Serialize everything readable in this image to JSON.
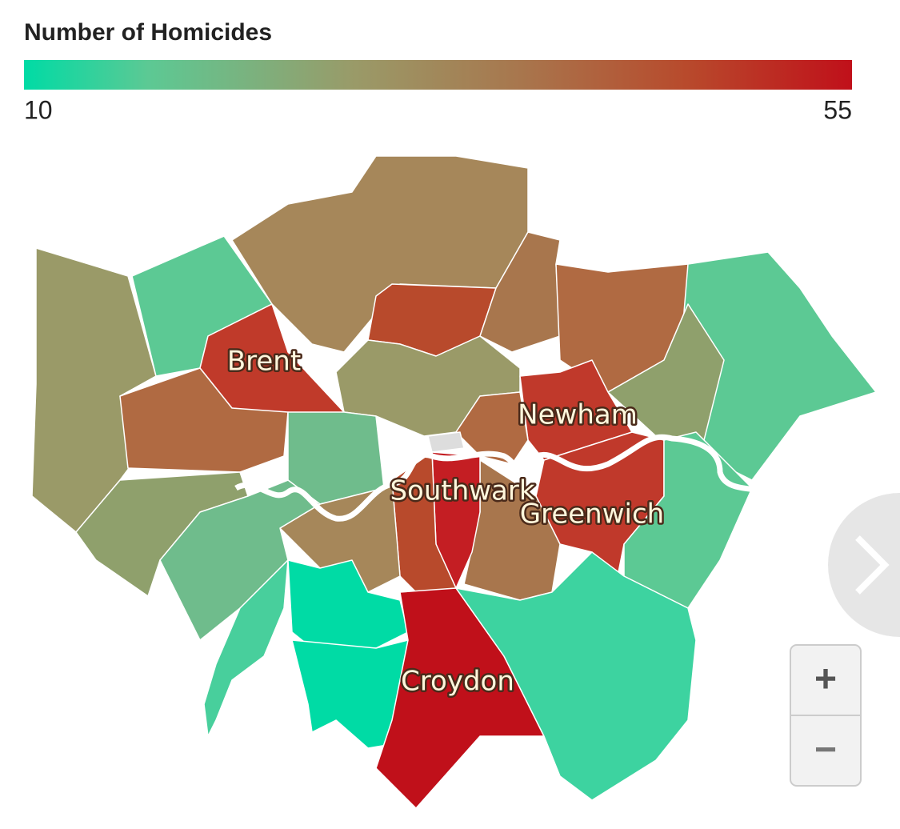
{
  "legend": {
    "title": "Number of Homicides",
    "min": 10,
    "max": 55
  },
  "labels": [
    "Brent",
    "Newham",
    "Southwark",
    "Greenwich",
    "Croydon"
  ],
  "controls": {
    "zoom_in": "+",
    "zoom_out": "−"
  }
}
